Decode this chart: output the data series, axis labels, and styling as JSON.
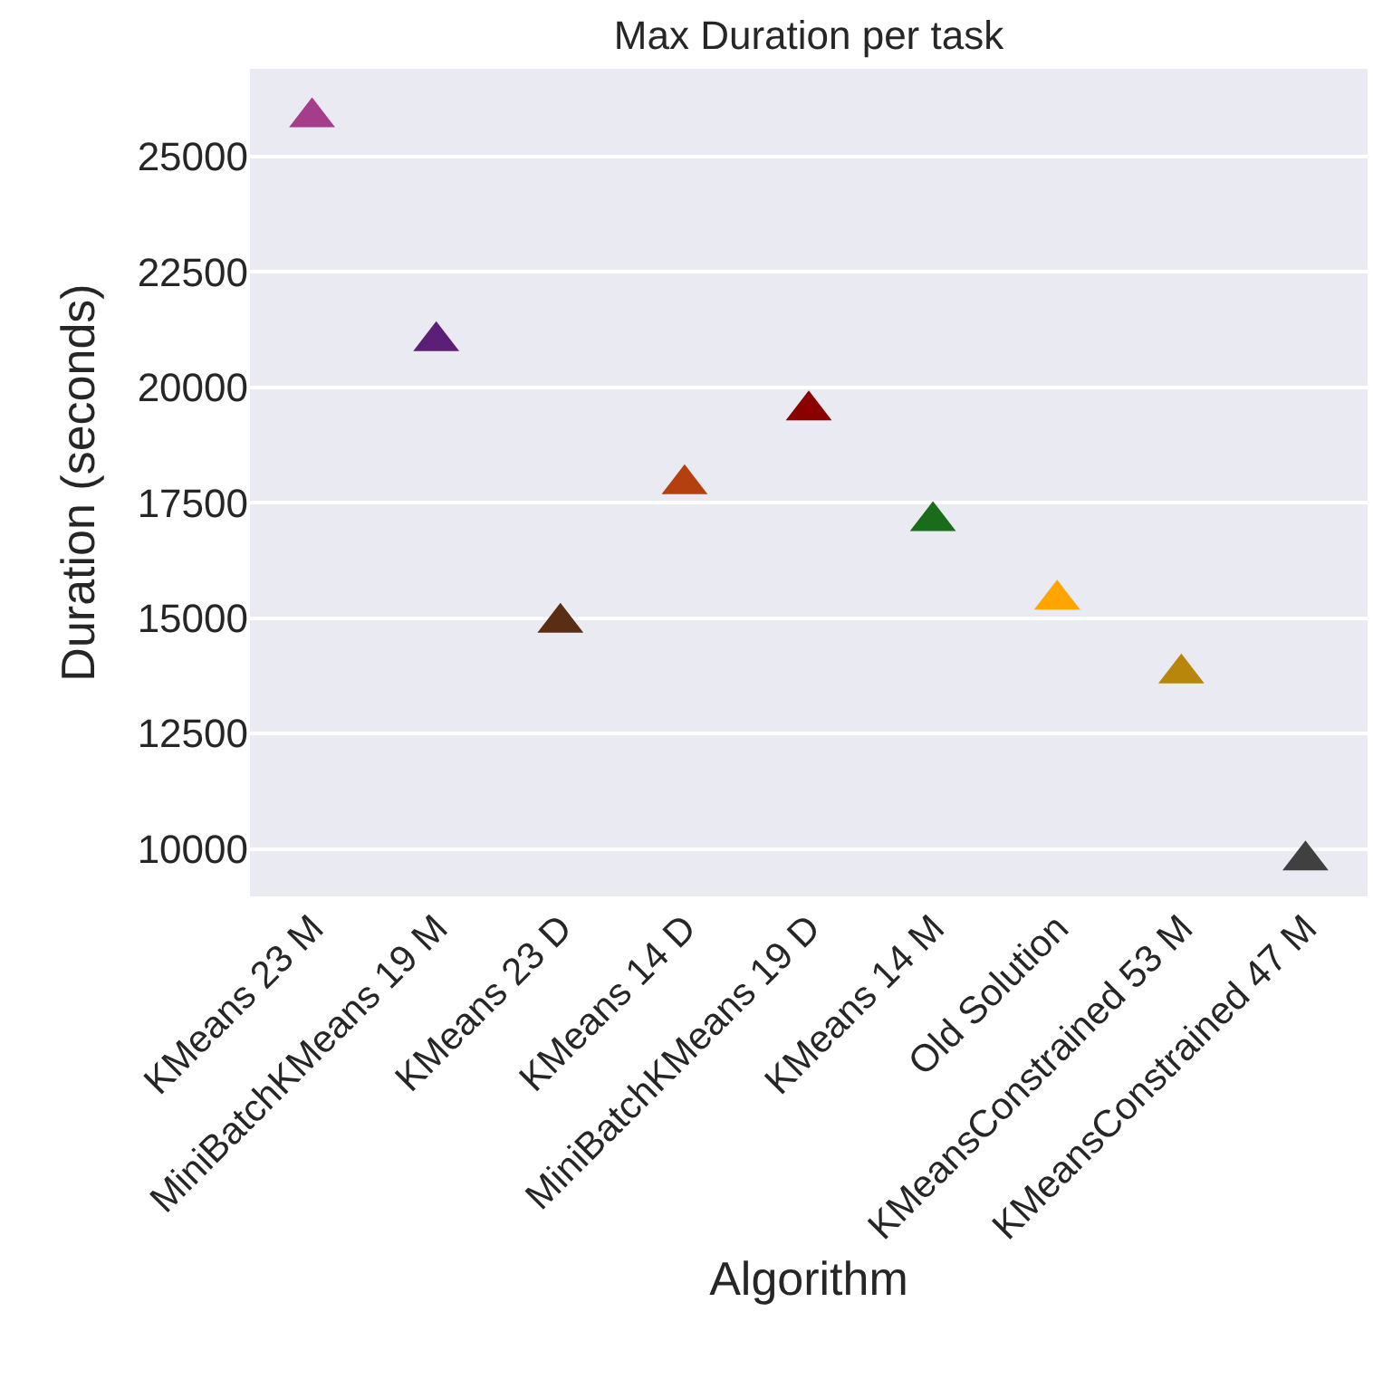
{
  "chart_data": {
    "type": "scatter",
    "title": "Max Duration per task",
    "xlabel": "Algorithm",
    "ylabel": "Duration (seconds)",
    "categories": [
      "KMeans 23 M",
      "MiniBatchKMeans 19 M",
      "KMeans 23 D",
      "KMeans 14 D",
      "MiniBatchKMeans 19 D",
      "KMeans 14 M",
      "Old Solution",
      "KMeansConstrained 53 M",
      "KMeansConstrained 47 M"
    ],
    "values": [
      25850,
      21000,
      14900,
      17900,
      19500,
      17100,
      15400,
      13800,
      9750
    ],
    "colors": [
      "#a63d8a",
      "#5c1f78",
      "#5a2e14",
      "#b5400f",
      "#8b0000",
      "#1a6b1a",
      "#ffa500",
      "#b8860b",
      "#404040"
    ],
    "ylim": [
      8970,
      26900
    ],
    "yticks": [
      10000,
      12500,
      15000,
      17500,
      20000,
      22500,
      25000
    ],
    "grid": "y",
    "marker": "triangle"
  }
}
